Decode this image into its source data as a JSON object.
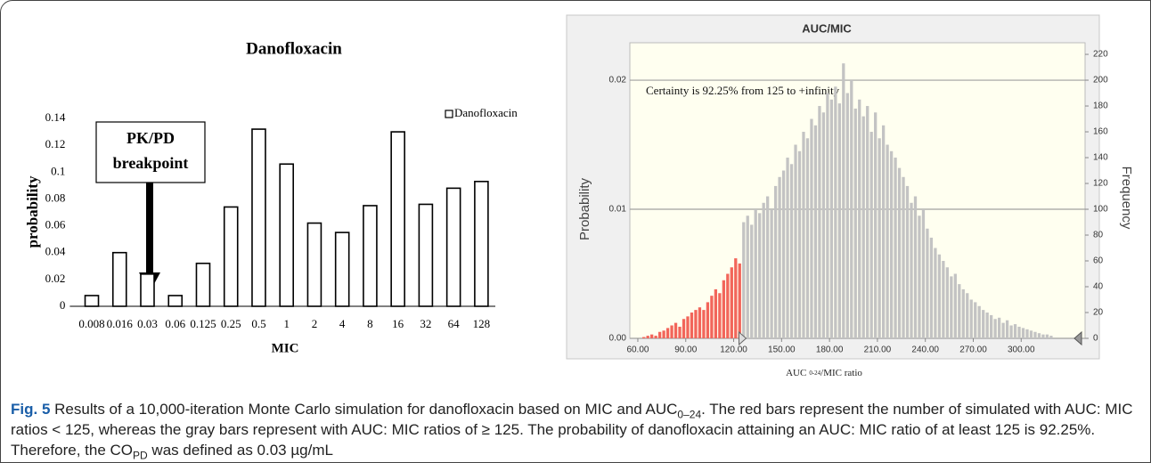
{
  "chart_data": [
    {
      "type": "bar",
      "title": "Danofloxacin",
      "xlabel": "MIC",
      "ylabel": "probability",
      "categories": [
        "0.008",
        "0.016",
        "0.03",
        "0.06",
        "0.125",
        "0.25",
        "0.5",
        "1",
        "2",
        "4",
        "8",
        "16",
        "32",
        "64",
        "128"
      ],
      "series": [
        {
          "name": "Danofloxacin",
          "color": "#ffffff",
          "values": [
            0.008,
            0.04,
            0.024,
            0.008,
            0.032,
            0.074,
            0.132,
            0.106,
            0.062,
            0.055,
            0.075,
            0.13,
            0.076,
            0.088,
            0.093
          ]
        }
      ],
      "ylim": [
        0,
        0.14
      ],
      "yticks": [
        0,
        0.02,
        0.04,
        0.06,
        0.08,
        0.1,
        0.12,
        0.14
      ],
      "legend": "upper right",
      "grid": false,
      "annotation": [
        "PK/PD",
        "breakpoint"
      ]
    },
    {
      "type": "histogram",
      "title": "AUC/MIC",
      "xlabel": [
        "AUC",
        "0-24",
        "/MIC ratio"
      ],
      "ylabel": "Probability",
      "y2label": "Frequency",
      "annotation": "Certainty is 92.25% from 125 to +infinity",
      "series": [
        {
          "color": "#f2655a",
          "axis": "y2",
          "bins": [
            62.5,
            65,
            67.5,
            70,
            72.5,
            75,
            77.5,
            80,
            82.5,
            85,
            87.5,
            90,
            92.5,
            95,
            97.5,
            100,
            102.5,
            105,
            107.5,
            110,
            112.5,
            115,
            117.5,
            120,
            122.5,
            125
          ],
          "values": [
            1,
            2,
            3,
            2,
            5,
            6,
            8,
            10,
            12,
            9,
            15,
            17,
            20,
            22,
            24,
            22,
            28,
            33,
            38,
            35,
            45,
            50,
            55,
            62,
            58
          ]
        },
        {
          "color": "#c3c3c3",
          "axis": "y2",
          "bins": [
            125,
            127.5,
            130,
            132.5,
            135,
            137.5,
            140,
            142.5,
            145,
            147.5,
            150,
            152.5,
            155,
            157.5,
            160,
            162.5,
            165,
            167.5,
            170,
            172.5,
            175,
            177.5,
            180,
            182.5,
            185,
            187.5,
            190,
            192.5,
            195,
            197.5,
            200,
            202.5,
            205,
            207.5,
            210,
            212.5,
            215,
            217.5,
            220,
            222.5,
            225,
            227.5,
            230,
            232.5,
            235,
            237.5,
            240,
            242.5,
            245,
            247.5,
            250,
            252.5,
            255,
            257.5,
            260,
            262.5,
            265,
            267.5,
            270,
            272.5,
            275,
            277.5,
            280,
            282.5,
            285,
            287.5,
            290,
            292.5,
            295,
            297.5,
            300,
            302.5,
            305,
            307.5,
            310,
            312.5,
            315,
            317.5,
            320
          ],
          "values": [
            90,
            95,
            88,
            100,
            97,
            105,
            110,
            100,
            118,
            125,
            130,
            140,
            135,
            150,
            145,
            160,
            155,
            170,
            165,
            180,
            175,
            190,
            185,
            195,
            182,
            213,
            190,
            200,
            178,
            185,
            172,
            180,
            160,
            175,
            155,
            165,
            150,
            145,
            140,
            132,
            125,
            118,
            105,
            110,
            95,
            100,
            85,
            78,
            70,
            65,
            60,
            55,
            48,
            50,
            42,
            38,
            35,
            30,
            28,
            25,
            22,
            20,
            18,
            15,
            16,
            12,
            14,
            10,
            11,
            9,
            8,
            7,
            6,
            5,
            4,
            3,
            3,
            2
          ]
        }
      ],
      "xlim": [
        55,
        340
      ],
      "xticks": [
        {
          "value": 60,
          "label": "60.00"
        },
        {
          "value": 90,
          "label": "90.00"
        },
        {
          "value": 120,
          "label": "120.00"
        },
        {
          "value": 150,
          "label": "150.00"
        },
        {
          "value": 180,
          "label": "180.00"
        },
        {
          "value": 210,
          "label": "210.00"
        },
        {
          "value": 240,
          "label": "240.00"
        },
        {
          "value": 270,
          "label": "270.00"
        },
        {
          "value": 300,
          "label": "300.00"
        }
      ],
      "ylim": [
        0,
        0.0229
      ],
      "yticks": [
        {
          "value": 0,
          "label": "0.00"
        },
        {
          "value": 0.01,
          "label": "0.01"
        },
        {
          "value": 0.02,
          "label": "0.02"
        }
      ],
      "y2lim": [
        0,
        229
      ],
      "y2ticks": [
        0,
        20,
        40,
        60,
        80,
        100,
        120,
        140,
        160,
        180,
        200,
        220
      ],
      "grid": true
    }
  ],
  "caption": {
    "label": "Fig. 5",
    "parts": [
      "Results of a 10,000-iteration Monte Carlo simulation for danofloxacin based on MIC and AUC",
      "0–24",
      ". The red bars represent the number of simulated with AUC: MIC ratios < 125, whereas the gray bars represent with AUC: MIC ratios of ≥ 125. The probability of danofloxacin attaining an AUC: MIC ratio of at least 125 is 92.25%. Therefore, the CO",
      "PD",
      " was defined as 0.03 µg/mL"
    ]
  }
}
